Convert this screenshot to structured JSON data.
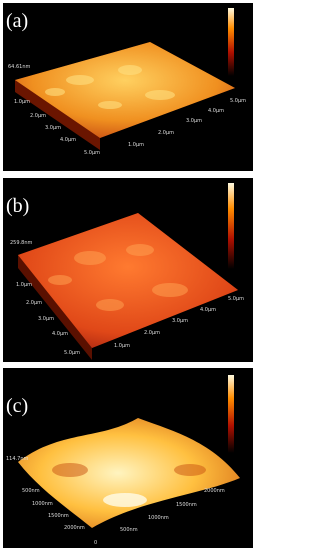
{
  "panels": [
    {
      "label": "(a)",
      "height": "64.61nm",
      "axis_left": [
        "1.0µm",
        "2.0µm",
        "3.0µm",
        "4.0µm",
        "5.0µm"
      ],
      "axis_right": [
        "1.0µm",
        "2.0µm",
        "3.0µm",
        "4.0µm",
        "5.0µm"
      ]
    },
    {
      "label": "(b)",
      "height": "259.8nm",
      "axis_left": [
        "1.0µm",
        "2.0µm",
        "3.0µm",
        "4.0µm",
        "5.0µm"
      ],
      "axis_right": [
        "1.0µm",
        "2.0µm",
        "3.0µm",
        "4.0µm",
        "5.0µm"
      ]
    },
    {
      "label": "(c)",
      "height": "114.7nm",
      "axis_left": [
        "500nm",
        "1000nm",
        "1500nm",
        "2000nm",
        "0"
      ],
      "axis_right": [
        "500nm",
        "1000nm",
        "1500nm",
        "2000nm"
      ]
    }
  ]
}
